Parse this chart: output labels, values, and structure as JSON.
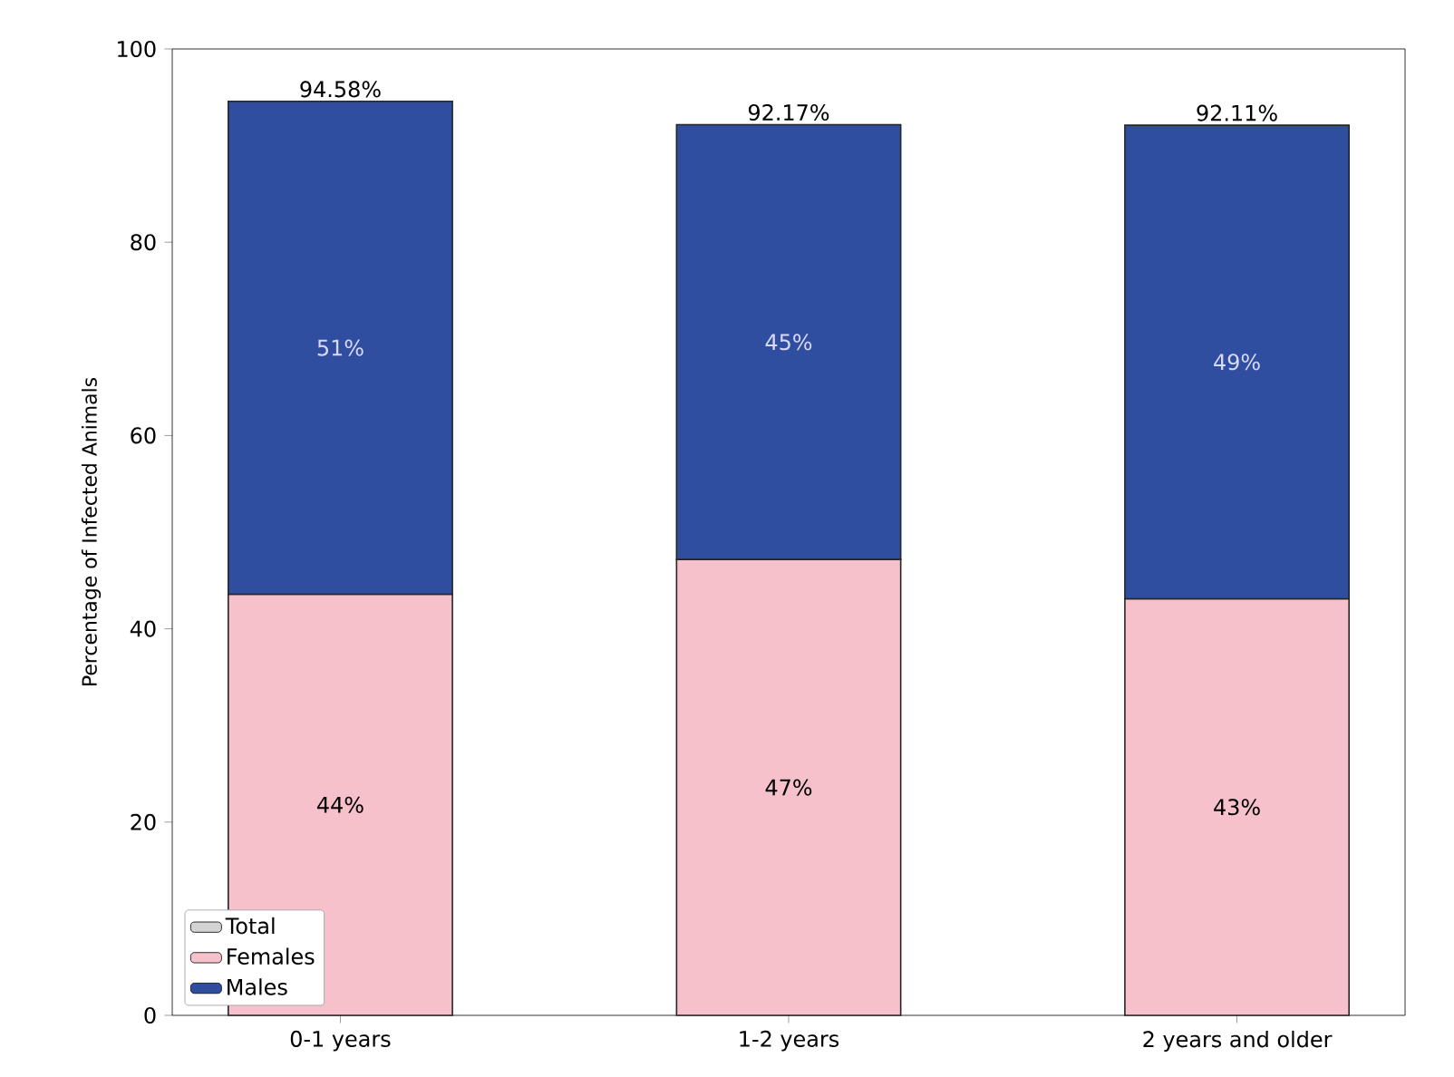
{
  "chart_data": {
    "type": "bar",
    "stacked": true,
    "ylabel": "Percentage of Infected Animals",
    "categories": [
      "0-1 years",
      "1-2 years",
      "2 years and older"
    ],
    "series": [
      {
        "name": "Total",
        "color": "#d3d3d3",
        "values": [
          null,
          null,
          null
        ]
      },
      {
        "name": "Females",
        "color": "#f7c1cc",
        "values": [
          43.58,
          47.17,
          43.11
        ],
        "value_labels": [
          "44%",
          "47%",
          "43%"
        ]
      },
      {
        "name": "Males",
        "color": "#2f4ea0",
        "values": [
          51,
          45,
          49
        ],
        "value_labels": [
          "51%",
          "45%",
          "49%"
        ]
      }
    ],
    "totals": [
      "94.58%",
      "92.17%",
      "92.11%"
    ],
    "ylim": [
      0,
      100
    ],
    "yticks": [
      0,
      20,
      40,
      60,
      80,
      100
    ],
    "grid": false,
    "legend": "bottom left"
  }
}
